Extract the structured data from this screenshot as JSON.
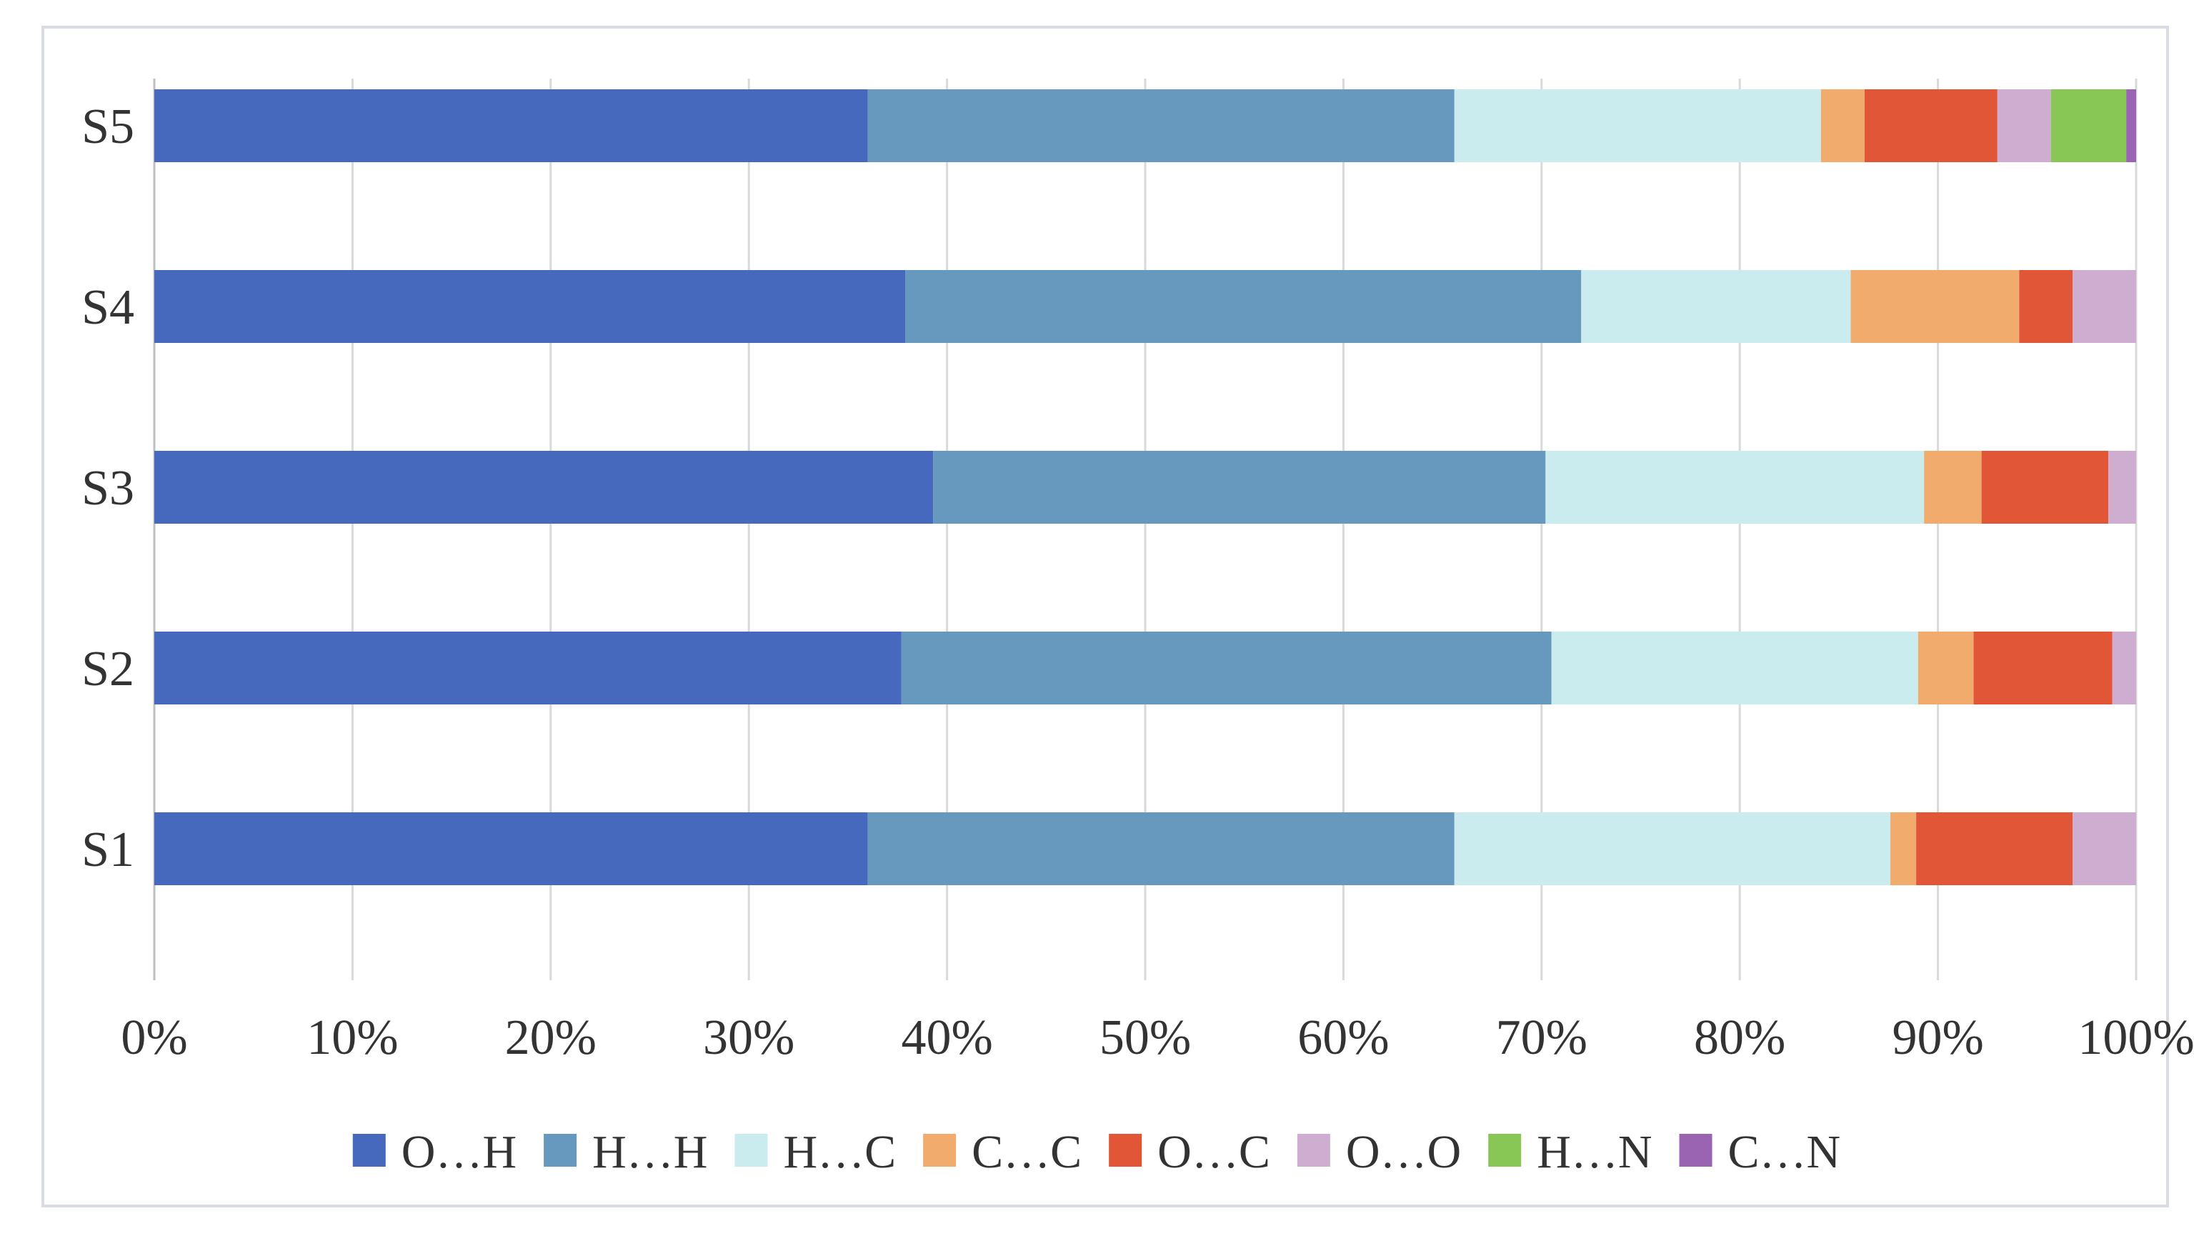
{
  "chart_data": {
    "type": "bar",
    "orientation": "horizontal",
    "stacked": "percent",
    "title": "",
    "xlabel": "",
    "ylabel": "",
    "xlim": [
      0,
      100
    ],
    "x_ticks": [
      "0%",
      "10%",
      "20%",
      "30%",
      "40%",
      "50%",
      "60%",
      "70%",
      "80%",
      "90%",
      "100%"
    ],
    "grid": "vertical",
    "legend_position": "bottom",
    "categories": [
      "S1",
      "S2",
      "S3",
      "S4",
      "S5"
    ],
    "series": [
      {
        "name": "O…H",
        "color": "#4669bd",
        "values": [
          36.0,
          37.7,
          39.3,
          37.9,
          36.0
        ]
      },
      {
        "name": "H…H",
        "color": "#6699bd",
        "values": [
          29.6,
          32.8,
          30.9,
          34.1,
          29.6
        ]
      },
      {
        "name": "H…C",
        "color": "#cbecee",
        "values": [
          22.0,
          18.5,
          19.1,
          13.6,
          18.5
        ]
      },
      {
        "name": "C…C",
        "color": "#f0ab6d",
        "values": [
          1.3,
          2.8,
          2.9,
          8.5,
          2.2
        ]
      },
      {
        "name": "O…C",
        "color": "#e05637",
        "values": [
          7.9,
          7.0,
          6.4,
          2.7,
          6.7
        ]
      },
      {
        "name": "O…O",
        "color": "#cfadd0",
        "values": [
          3.2,
          1.2,
          1.4,
          3.2,
          2.7
        ]
      },
      {
        "name": "H…N",
        "color": "#88c655",
        "values": [
          0,
          0,
          0,
          0,
          3.8
        ]
      },
      {
        "name": "C…N",
        "color": "#9a64b2",
        "values": [
          0,
          0,
          0,
          0,
          0.5
        ]
      }
    ]
  }
}
